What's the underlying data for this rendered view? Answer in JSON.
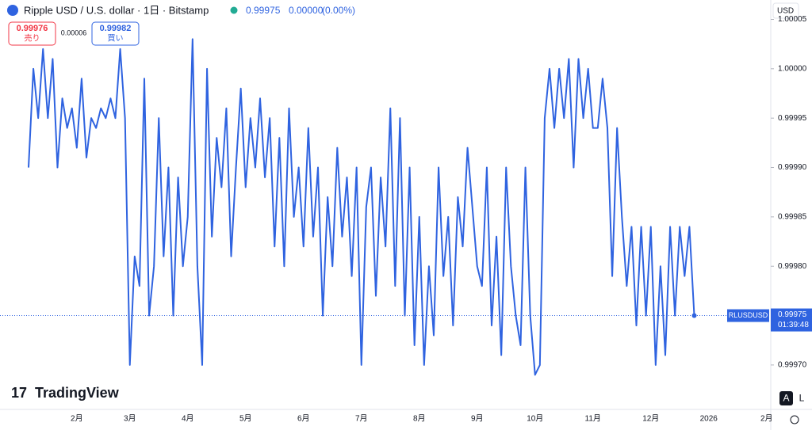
{
  "chart_data": {
    "type": "line",
    "symbol": "Ripple USD / U.S. dollar · 1日 · Bitstamp",
    "change": "0.00000",
    "change_pct": "(0.00%)",
    "sell": 0.99976,
    "sell_label": "売り",
    "spread": 6e-05,
    "buy": 0.99982,
    "buy_label": "買い",
    "currency": "USD",
    "ticker": "RLUSDUSD",
    "countdown": "01:39:48",
    "brand": "TradingView",
    "auto_button": "A",
    "log_button": "L",
    "color": "#2f63e0",
    "categories": [
      null,
      null,
      null,
      null,
      null,
      null,
      null,
      null,
      null,
      null,
      "2月",
      null,
      null,
      null,
      null,
      null,
      null,
      null,
      null,
      null,
      null,
      "3月",
      null,
      null,
      null,
      null,
      null,
      null,
      null,
      null,
      null,
      null,
      null,
      "4月",
      null,
      null,
      null,
      null,
      null,
      null,
      null,
      null,
      null,
      null,
      null,
      "5月",
      null,
      null,
      null,
      null,
      null,
      null,
      null,
      null,
      null,
      null,
      null,
      "6月",
      null,
      null,
      null,
      null,
      null,
      null,
      null,
      null,
      null,
      null,
      null,
      "7月",
      null,
      null,
      null,
      null,
      null,
      null,
      null,
      null,
      null,
      null,
      null,
      "8月",
      null,
      null,
      null,
      null,
      null,
      null,
      null,
      null,
      null,
      null,
      null,
      "9月",
      null,
      null,
      null,
      null,
      null,
      null,
      null,
      null,
      null,
      null,
      null,
      "10月",
      null,
      null,
      null,
      null,
      null,
      null,
      null,
      null,
      null,
      null,
      null,
      "11月",
      null,
      null,
      null,
      null,
      null,
      null,
      null,
      null,
      null,
      null,
      null,
      "12月",
      null,
      null,
      null,
      null,
      null,
      null,
      null,
      null,
      null,
      null,
      null,
      "2026",
      null,
      null,
      null,
      null,
      null,
      null,
      null,
      null,
      null,
      null,
      null,
      "2月"
    ],
    "values": [
      0.9999,
      1.0,
      0.99995,
      1.00002,
      0.99995,
      1.00001,
      0.9999,
      0.99997,
      0.99994,
      0.99996,
      0.99992,
      0.99999,
      0.99991,
      0.99995,
      0.99994,
      0.99996,
      0.99995,
      0.99997,
      0.99995,
      1.00002,
      0.99995,
      0.9997,
      0.99981,
      0.99978,
      0.99999,
      0.99975,
      0.9998,
      0.99995,
      0.99981,
      0.9999,
      0.99975,
      0.99989,
      0.9998,
      0.99985,
      1.00003,
      0.9998,
      0.9997,
      1.0,
      0.99983,
      0.99993,
      0.99988,
      0.99996,
      0.99981,
      0.9999,
      0.99998,
      0.99988,
      0.99995,
      0.9999,
      0.99997,
      0.99989,
      0.99995,
      0.99982,
      0.99993,
      0.9998,
      0.99996,
      0.99985,
      0.9999,
      0.99982,
      0.99994,
      0.99983,
      0.9999,
      0.99975,
      0.99987,
      0.9998,
      0.99992,
      0.99983,
      0.99989,
      0.99979,
      0.9999,
      0.9997,
      0.99986,
      0.9999,
      0.99977,
      0.99989,
      0.99982,
      0.99996,
      0.99978,
      0.99995,
      0.99975,
      0.9999,
      0.99972,
      0.99985,
      0.9997,
      0.9998,
      0.99973,
      0.9999,
      0.99979,
      0.99985,
      0.99974,
      0.99987,
      0.99982,
      0.99992,
      0.99986,
      0.9998,
      0.99978,
      0.9999,
      0.99974,
      0.99983,
      0.99971,
      0.9999,
      0.9998,
      0.99975,
      0.99972,
      0.9999,
      0.99975,
      0.99969,
      0.9997,
      0.99995,
      1.0,
      0.99994,
      1.0,
      0.99995,
      1.00001,
      0.9999,
      1.00001,
      0.99995,
      1.0,
      0.99994,
      0.99994,
      0.99999,
      0.99994,
      0.99979,
      0.99994,
      0.99985,
      0.99978,
      0.99984,
      0.99974,
      0.99984,
      0.99975,
      0.99984,
      0.9997,
      0.9998,
      0.99971,
      0.99984,
      0.99975,
      0.99984,
      0.99979,
      0.99984,
      0.99975,
      null,
      null,
      null,
      null,
      null,
      null,
      null,
      null,
      null,
      null,
      null,
      null,
      null,
      null,
      null
    ],
    "ylim": [
      0.999655,
      1.000052
    ],
    "yticks": [
      {
        "value": 0.9997,
        "label": "0.99970"
      },
      0.99975,
      {
        "value": 0.9998,
        "label": "0.99980"
      },
      0.99985,
      {
        "value": 0.9999,
        "label": "0.99990"
      },
      0.99995,
      {
        "value": 1.0,
        "label": "1.00000"
      },
      1.00005
    ]
  }
}
